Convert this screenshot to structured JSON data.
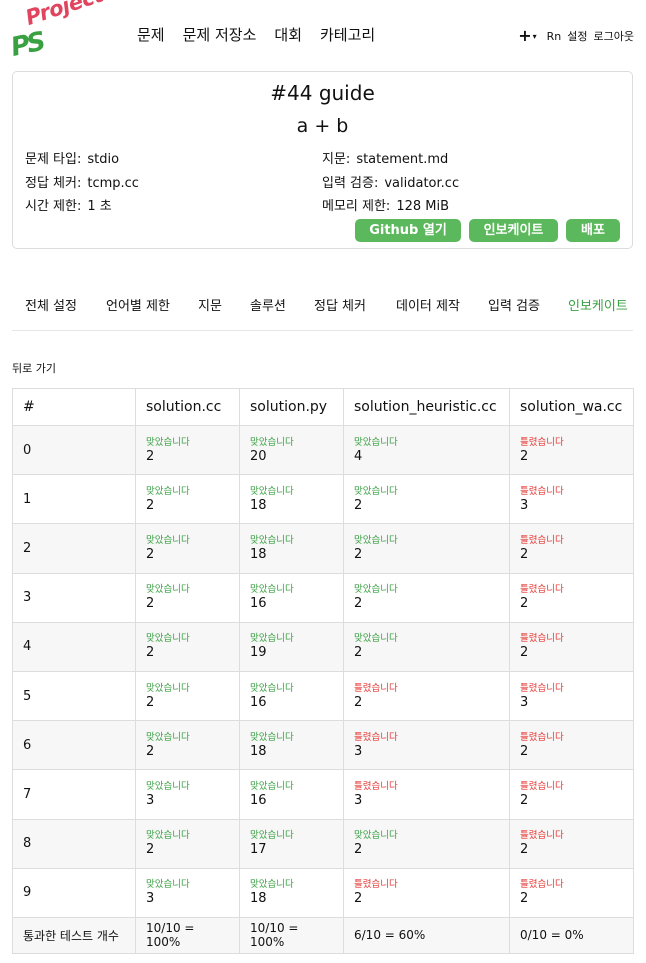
{
  "logo": {
    "top": "Project",
    "bottom": "PS"
  },
  "nav": [
    "문제",
    "문제 저장소",
    "대회",
    "카테고리"
  ],
  "header_right": {
    "plus": "+",
    "caret": "▾",
    "user": "Rn",
    "settings": "설정",
    "logout": "로그아웃"
  },
  "problem": {
    "id": "#44 guide",
    "title": "a + b",
    "info_left": [
      {
        "k": "문제 타입:",
        "v": "stdio"
      },
      {
        "k": "정답 체커:",
        "v": "tcmp.cc"
      },
      {
        "k": "시간 제한:",
        "v": "1 초"
      }
    ],
    "info_right": [
      {
        "k": "지문:",
        "v": "statement.md"
      },
      {
        "k": "입력 검증:",
        "v": "validator.cc"
      },
      {
        "k": "메모리 제한:",
        "v": "128 MiB"
      }
    ],
    "buttons": [
      "Github 열기",
      "인보케이트",
      "배포"
    ]
  },
  "tabs": [
    "전체 설정",
    "언어별 제한",
    "지문",
    "솔루션",
    "정답 체커",
    "데이터 제작",
    "입력 검증",
    "인보케이트"
  ],
  "active_tab": 7,
  "back": "뒤로 가기",
  "table": {
    "headers": [
      "#",
      "solution.cc",
      "solution.py",
      "solution_heuristic.cc",
      "solution_wa.cc"
    ],
    "verdicts": {
      "ac": "맞았습니다",
      "wa": "틀렸습니다"
    },
    "rows": [
      {
        "n": "0",
        "cells": [
          [
            "ac",
            "2"
          ],
          [
            "ac",
            "20"
          ],
          [
            "ac",
            "4"
          ],
          [
            "wa",
            "2"
          ]
        ]
      },
      {
        "n": "1",
        "cells": [
          [
            "ac",
            "2"
          ],
          [
            "ac",
            "18"
          ],
          [
            "ac",
            "2"
          ],
          [
            "wa",
            "3"
          ]
        ]
      },
      {
        "n": "2",
        "cells": [
          [
            "ac",
            "2"
          ],
          [
            "ac",
            "18"
          ],
          [
            "ac",
            "2"
          ],
          [
            "wa",
            "2"
          ]
        ]
      },
      {
        "n": "3",
        "cells": [
          [
            "ac",
            "2"
          ],
          [
            "ac",
            "16"
          ],
          [
            "ac",
            "2"
          ],
          [
            "wa",
            "2"
          ]
        ]
      },
      {
        "n": "4",
        "cells": [
          [
            "ac",
            "2"
          ],
          [
            "ac",
            "19"
          ],
          [
            "ac",
            "2"
          ],
          [
            "wa",
            "2"
          ]
        ]
      },
      {
        "n": "5",
        "cells": [
          [
            "ac",
            "2"
          ],
          [
            "ac",
            "16"
          ],
          [
            "wa",
            "2"
          ],
          [
            "wa",
            "3"
          ]
        ]
      },
      {
        "n": "6",
        "cells": [
          [
            "ac",
            "2"
          ],
          [
            "ac",
            "18"
          ],
          [
            "wa",
            "3"
          ],
          [
            "wa",
            "2"
          ]
        ]
      },
      {
        "n": "7",
        "cells": [
          [
            "ac",
            "3"
          ],
          [
            "ac",
            "16"
          ],
          [
            "wa",
            "3"
          ],
          [
            "wa",
            "2"
          ]
        ]
      },
      {
        "n": "8",
        "cells": [
          [
            "ac",
            "2"
          ],
          [
            "ac",
            "17"
          ],
          [
            "ac",
            "2"
          ],
          [
            "wa",
            "2"
          ]
        ]
      },
      {
        "n": "9",
        "cells": [
          [
            "ac",
            "3"
          ],
          [
            "ac",
            "18"
          ],
          [
            "wa",
            "2"
          ],
          [
            "wa",
            "2"
          ]
        ]
      }
    ],
    "footer": [
      "통과한 테스트 개수",
      "10/10 = 100%",
      "10/10 = 100%",
      "6/10 = 60%",
      "0/10 = 0%"
    ]
  },
  "colors": {
    "accent": "#5cb85c",
    "ac": "#3aa143",
    "wa": "#e53935",
    "logo_red": "#e0445e"
  }
}
